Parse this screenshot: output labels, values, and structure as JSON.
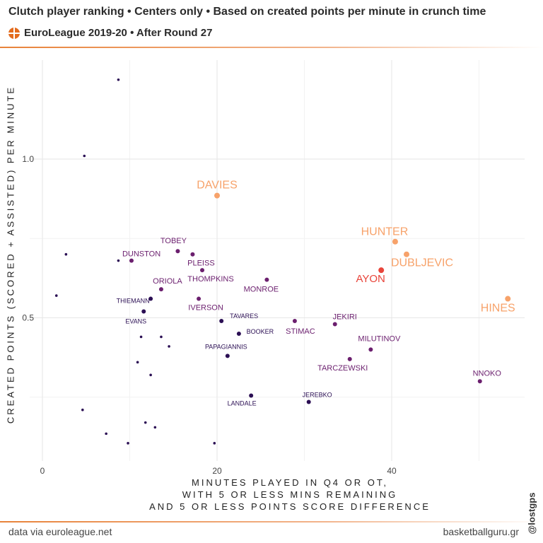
{
  "header": {
    "title": "Clutch player ranking • Centers only • Based on created points per minute in crunch time",
    "subtitle": "EuroLeague 2019-20 • After Round 27"
  },
  "footer": {
    "source": "data via euroleague.net",
    "site": "basketballguru.gr",
    "handle": "@lostgps"
  },
  "chart_data": {
    "type": "scatter",
    "title": "Clutch player ranking • Centers only • Based on created points per minute in crunch time",
    "subtitle": "EuroLeague 2019-20 • After Round 27",
    "xlabel_lines": [
      "MINUTES PLAYED IN Q4 OR OT,",
      "WITH 5 OR LESS MINS REMAINING",
      "AND 5 OR LESS POINTS SCORE DIFFERENCE"
    ],
    "ylabel": "CREATED POINTS (SCORED + ASSISTED) PER MINUTE",
    "xlim": [
      0,
      55
    ],
    "ylim": [
      0,
      1.25
    ],
    "x_ticks": [
      0,
      20,
      40
    ],
    "y_ticks": [
      0.5,
      1.0
    ],
    "x_tick_labels": [
      "0",
      "20",
      "40"
    ],
    "y_tick_labels": [
      "0.5",
      "1.0"
    ],
    "grid": true,
    "color_scale": [
      "#2b0f54",
      "#6b1f6e",
      "#a3307a",
      "#e8443a",
      "#f7a26a"
    ],
    "points": [
      {
        "x": 8.7,
        "y": 1.25,
        "label": ""
      },
      {
        "x": 4.8,
        "y": 1.01,
        "label": ""
      },
      {
        "x": 20.0,
        "y": 0.885,
        "label": "DAVIES"
      },
      {
        "x": 2.7,
        "y": 0.7,
        "label": ""
      },
      {
        "x": 8.7,
        "y": 0.68,
        "label": ""
      },
      {
        "x": 10.2,
        "y": 0.68,
        "label": "DUNSTON"
      },
      {
        "x": 15.5,
        "y": 0.71,
        "label": "TOBEY"
      },
      {
        "x": 17.2,
        "y": 0.7,
        "label": "PLEISS"
      },
      {
        "x": 18.3,
        "y": 0.65,
        "label": "THOMPKINS"
      },
      {
        "x": 25.7,
        "y": 0.62,
        "label": "MONROE"
      },
      {
        "x": 13.6,
        "y": 0.59,
        "label": "ORIOLA"
      },
      {
        "x": 1.6,
        "y": 0.57,
        "label": ""
      },
      {
        "x": 12.4,
        "y": 0.56,
        "label": "THIEMANN"
      },
      {
        "x": 17.9,
        "y": 0.56,
        "label": "IVERSON"
      },
      {
        "x": 11.6,
        "y": 0.52,
        "label": "EVANS"
      },
      {
        "x": 20.5,
        "y": 0.49,
        "label": "TAVARES"
      },
      {
        "x": 28.9,
        "y": 0.49,
        "label": "STIMAC"
      },
      {
        "x": 22.5,
        "y": 0.45,
        "label": "BOOKER"
      },
      {
        "x": 33.5,
        "y": 0.48,
        "label": "JEKIRI"
      },
      {
        "x": 11.3,
        "y": 0.44,
        "label": ""
      },
      {
        "x": 13.6,
        "y": 0.44,
        "label": ""
      },
      {
        "x": 14.5,
        "y": 0.41,
        "label": ""
      },
      {
        "x": 21.2,
        "y": 0.38,
        "label": "PAPAGIANNIS"
      },
      {
        "x": 37.6,
        "y": 0.4,
        "label": "MILUTINOV"
      },
      {
        "x": 35.2,
        "y": 0.37,
        "label": "TARCZEWSKI"
      },
      {
        "x": 10.9,
        "y": 0.36,
        "label": ""
      },
      {
        "x": 12.4,
        "y": 0.32,
        "label": ""
      },
      {
        "x": 50.1,
        "y": 0.3,
        "label": "NNOKO"
      },
      {
        "x": 23.9,
        "y": 0.255,
        "label": "LANDALE"
      },
      {
        "x": 30.5,
        "y": 0.235,
        "label": "JEREBKO"
      },
      {
        "x": 4.6,
        "y": 0.21,
        "label": ""
      },
      {
        "x": 11.8,
        "y": 0.17,
        "label": ""
      },
      {
        "x": 12.9,
        "y": 0.155,
        "label": ""
      },
      {
        "x": 7.3,
        "y": 0.135,
        "label": ""
      },
      {
        "x": 9.8,
        "y": 0.105,
        "label": ""
      },
      {
        "x": 19.7,
        "y": 0.105,
        "label": ""
      },
      {
        "x": 40.4,
        "y": 0.74,
        "label": "HUNTER"
      },
      {
        "x": 41.7,
        "y": 0.7,
        "label": "DUBLJEVIC"
      },
      {
        "x": 38.8,
        "y": 0.65,
        "label": "AYON"
      },
      {
        "x": 53.3,
        "y": 0.56,
        "label": "HINES"
      }
    ]
  }
}
